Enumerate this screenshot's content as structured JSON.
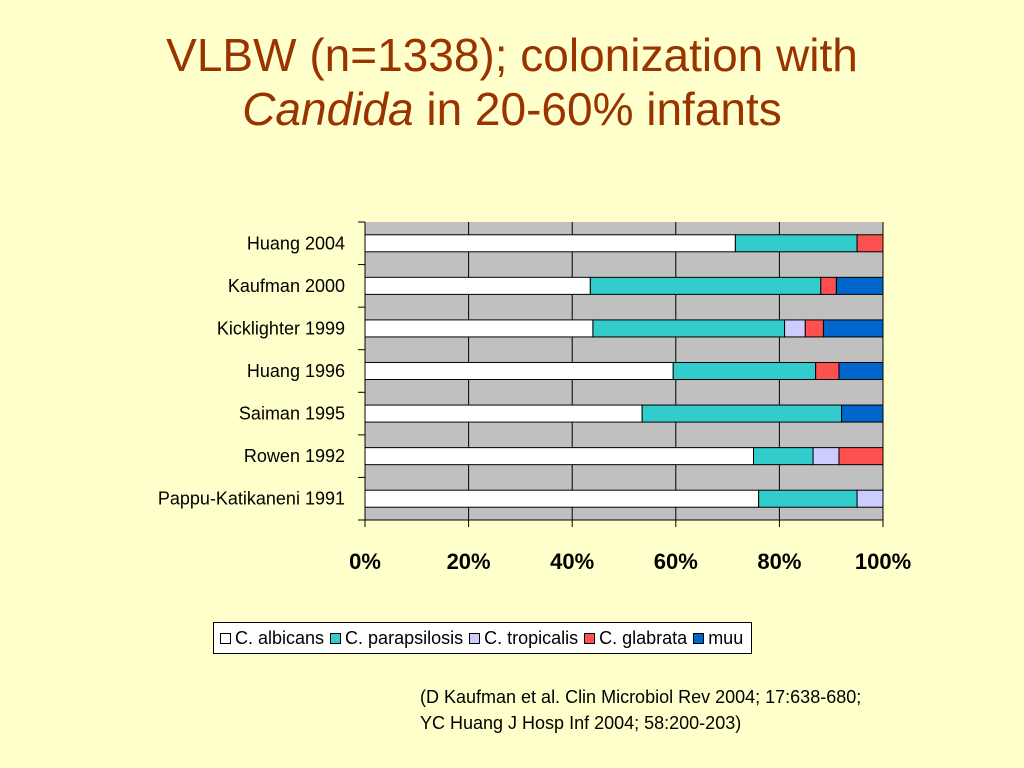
{
  "slide": {
    "title_line1": "VLBW (n=1338); colonization with",
    "title_italic": "Candida",
    "title_line2_rest": " in  20-60% infants",
    "citation_line1": "(D Kaufman et al. Clin Microbiol Rev 2004; 17:638-680;",
    "citation_line2": "YC Huang J Hosp Inf 2004; 58:200-203)"
  },
  "colors": {
    "background": "#FFFFCC",
    "title": "#993300",
    "plot_area": "#C0C0C0"
  },
  "chart_data": {
    "type": "bar",
    "orientation": "horizontal",
    "stacked": "100%",
    "categories": [
      "Huang 2004",
      "Kaufman 2000",
      "Kicklighter 1999",
      "Huang 1996",
      "Saiman 1995",
      "Rowen 1992",
      "Pappu-Katikaneni 1991"
    ],
    "series": [
      {
        "name": "C. albicans",
        "color": "#FFFFFF",
        "values": [
          71.5,
          43.5,
          44.0,
          59.5,
          53.5,
          75.0,
          76.0
        ]
      },
      {
        "name": "C. parapsilosis",
        "color": "#33CCCC",
        "values": [
          23.5,
          44.5,
          37.0,
          27.5,
          38.5,
          11.5,
          19.0
        ]
      },
      {
        "name": "C. tropicalis",
        "color": "#CCCCFF",
        "values": [
          0,
          0,
          4.0,
          0,
          0,
          5.0,
          5.0
        ]
      },
      {
        "name": "C. glabrata",
        "color": "#FF5050",
        "values": [
          5.0,
          3.0,
          3.5,
          4.5,
          0,
          8.5,
          0
        ]
      },
      {
        "name": "muu",
        "color": "#0066CC",
        "values": [
          0,
          9.0,
          11.5,
          8.5,
          8.0,
          0,
          0
        ]
      }
    ],
    "xticks": [
      "0%",
      "20%",
      "40%",
      "60%",
      "80%",
      "100%"
    ],
    "xlim": [
      0,
      100
    ],
    "grid": true,
    "legend_position": "bottom"
  }
}
